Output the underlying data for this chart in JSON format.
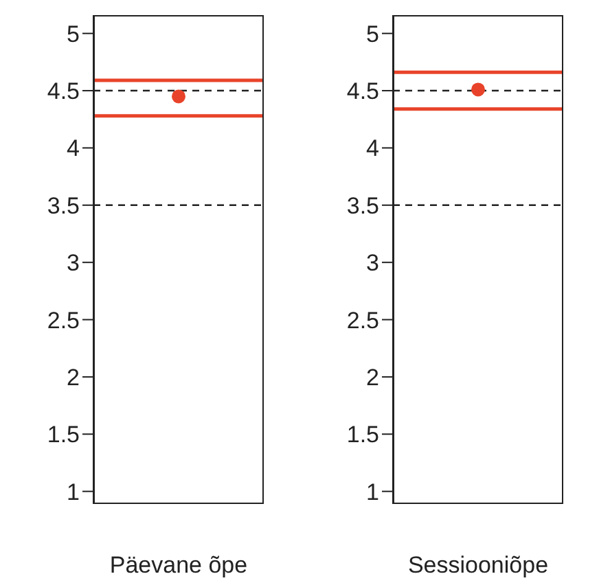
{
  "chart_data": [
    {
      "type": "scatter",
      "categories": [
        "Päevane õpe"
      ],
      "values": [
        4.45
      ],
      "color": "#e8432a",
      "marker": "circle",
      "ylim": [
        0.89,
        5.16
      ],
      "yticks": [
        1,
        1.5,
        2,
        2.5,
        3,
        3.5,
        4,
        4.5,
        5
      ],
      "grid": false,
      "legend": false,
      "ref_lines": [
        {
          "axis": "y",
          "value": 4.59,
          "color": "#e8432a",
          "line_style": "solid"
        },
        {
          "axis": "y",
          "value": 4.28,
          "color": "#e8432a",
          "line_style": "solid"
        },
        {
          "axis": "y",
          "value": 4.5,
          "color": "#222222",
          "line_style": "dashed"
        },
        {
          "axis": "y",
          "value": 3.5,
          "color": "#222222",
          "line_style": "dashed"
        }
      ]
    },
    {
      "type": "scatter",
      "categories": [
        "Sessiooniõpe"
      ],
      "values": [
        4.51
      ],
      "color": "#e8432a",
      "marker": "circle",
      "ylim": [
        0.89,
        5.16
      ],
      "yticks": [
        1,
        1.5,
        2,
        2.5,
        3,
        3.5,
        4,
        4.5,
        5
      ],
      "grid": false,
      "legend": false,
      "ref_lines": [
        {
          "axis": "y",
          "value": 4.66,
          "color": "#e8432a",
          "line_style": "solid"
        },
        {
          "axis": "y",
          "value": 4.34,
          "color": "#e8432a",
          "line_style": "solid"
        },
        {
          "axis": "y",
          "value": 4.5,
          "color": "#222222",
          "line_style": "dashed"
        },
        {
          "axis": "y",
          "value": 3.5,
          "color": "#222222",
          "line_style": "dashed"
        }
      ]
    }
  ]
}
